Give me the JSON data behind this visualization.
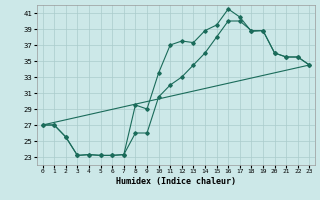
{
  "title": "",
  "xlabel": "Humidex (Indice chaleur)",
  "bg_color": "#cce8e8",
  "grid_color": "#aacccc",
  "line_color": "#1a6b5a",
  "xlim": [
    -0.5,
    23.5
  ],
  "ylim": [
    22.0,
    42.0
  ],
  "xticks": [
    0,
    1,
    2,
    3,
    4,
    5,
    6,
    7,
    8,
    9,
    10,
    11,
    12,
    13,
    14,
    15,
    16,
    17,
    18,
    19,
    20,
    21,
    22,
    23
  ],
  "yticks": [
    23,
    25,
    27,
    29,
    31,
    33,
    35,
    37,
    39,
    41
  ],
  "line1_x": [
    0,
    1,
    2,
    3,
    4,
    5,
    6,
    7,
    8,
    9,
    10,
    11,
    12,
    13,
    14,
    15,
    16,
    17,
    18,
    19,
    20,
    21,
    22,
    23
  ],
  "line1_y": [
    27,
    27,
    25.5,
    23.2,
    23.3,
    23.2,
    23.2,
    23.3,
    29.5,
    29.0,
    33.5,
    37.0,
    37.5,
    37.3,
    38.8,
    39.5,
    41.5,
    40.5,
    38.7,
    38.8,
    36.0,
    35.5,
    35.5,
    34.5
  ],
  "line2_x": [
    0,
    1,
    2,
    3,
    4,
    5,
    6,
    7,
    8,
    9,
    10,
    11,
    12,
    13,
    14,
    15,
    16,
    17,
    18,
    19,
    20,
    21,
    22,
    23
  ],
  "line2_y": [
    27,
    27,
    25.5,
    23.2,
    23.3,
    23.2,
    23.2,
    23.3,
    26.0,
    26.0,
    30.5,
    32.0,
    33.0,
    34.5,
    36.0,
    38.0,
    40.0,
    40.0,
    38.8,
    38.8,
    36.0,
    35.5,
    35.5,
    34.5
  ],
  "line3_x": [
    0,
    23
  ],
  "line3_y": [
    27,
    34.5
  ]
}
